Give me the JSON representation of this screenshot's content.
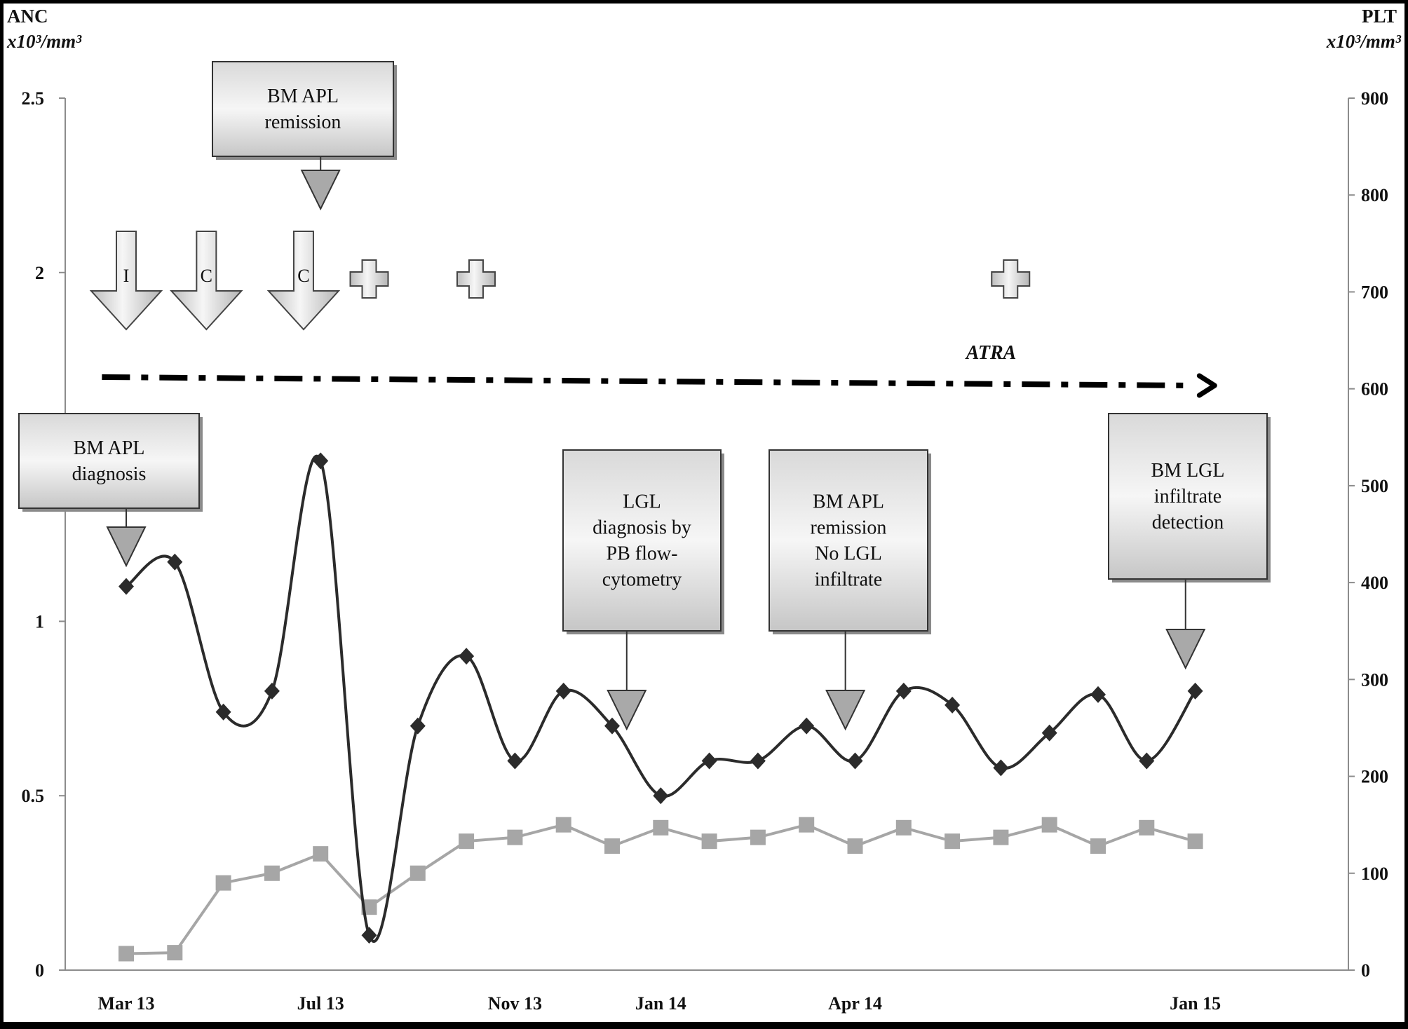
{
  "chart_data": {
    "type": "line",
    "title": "",
    "left_axis": {
      "label_line1": "ANC",
      "label_line2": "x10³/mm³",
      "ylim": [
        0,
        2.5
      ],
      "ticks": [
        0,
        0.5,
        1,
        1.5,
        2,
        2.5
      ],
      "tick_labels": [
        "0",
        "0.5",
        "1",
        "",
        "2",
        "2.5"
      ]
    },
    "right_axis": {
      "label_line1": "PLT",
      "label_line2": "x10³/mm³",
      "ylim": [
        0,
        900
      ],
      "ticks": [
        0,
        100,
        200,
        300,
        400,
        500,
        600,
        700,
        800,
        900
      ],
      "tick_labels": [
        "0",
        "100",
        "200",
        "300",
        "400",
        "500",
        "600",
        "700",
        "800",
        "900"
      ]
    },
    "x_labels": [
      {
        "text": "Mar 13",
        "index": 0
      },
      {
        "text": "Jul 13",
        "index": 4
      },
      {
        "text": "Nov 13",
        "index": 8
      },
      {
        "text": "Jan 14",
        "index": 11
      },
      {
        "text": "Apr 14",
        "index": 15
      },
      {
        "text": "Jan 15",
        "index": 22
      }
    ],
    "grid": false,
    "legend": "none",
    "series": [
      {
        "axis": "left",
        "color": "#2b2b2b",
        "marker": "diamond",
        "values": [
          1.1,
          1.17,
          0.74,
          0.8,
          1.46,
          0.1,
          0.7,
          0.9,
          0.6,
          0.8,
          0.7,
          0.5,
          0.6,
          0.6,
          0.7,
          0.6,
          0.8,
          0.76,
          0.58,
          0.68,
          0.79,
          0.6,
          0.8
        ]
      },
      {
        "axis": "right",
        "color": "#a6a6a6",
        "marker": "square",
        "values": [
          17,
          18,
          90,
          100,
          120,
          65,
          100,
          133,
          137,
          150,
          128,
          147,
          133,
          137,
          150,
          128,
          147,
          133,
          137,
          150,
          128,
          147,
          133
        ]
      }
    ],
    "annotations": {
      "boxes": [
        {
          "lines": [
            "BM APL",
            "diagnosis"
          ],
          "point_index": 0
        },
        {
          "lines": [
            "BM APL",
            "remission"
          ],
          "point_index": 4
        },
        {
          "lines": [
            "LGL",
            "diagnosis by",
            "PB flow-",
            "cytometry"
          ],
          "point_index": 10.3
        },
        {
          "lines": [
            "BM APL",
            "remission",
            "No LGL",
            "infiltrate"
          ],
          "point_index": 14.8
        },
        {
          "lines": [
            "BM LGL",
            "infiltrate",
            "detection"
          ],
          "point_index": 21.8
        }
      ],
      "treatment_arrows": [
        {
          "text": "I",
          "point_index": 0
        },
        {
          "text": "C",
          "point_index": 1.65
        },
        {
          "text": "C",
          "point_index": 3.65
        }
      ],
      "crosses": [
        5,
        7.2,
        18.2
      ],
      "atra": {
        "label": "ATRA",
        "start_index": -0.5,
        "end_index": 22.4
      }
    }
  }
}
